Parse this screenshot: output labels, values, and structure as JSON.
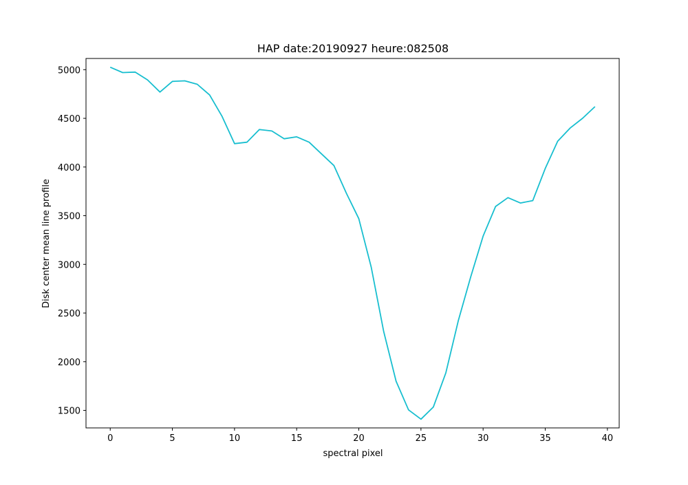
{
  "chart_data": {
    "type": "line",
    "title": "HAP date:20190927 heure:082508",
    "xlabel": "spectral pixel",
    "ylabel": "Disk center mean line profile",
    "xlim": [
      -1.95,
      40.95
    ],
    "ylim": [
      1320,
      5115
    ],
    "grid": false,
    "xticks": [
      0,
      5,
      10,
      15,
      20,
      25,
      30,
      35,
      40
    ],
    "yticks": [
      1500,
      2000,
      2500,
      3000,
      3500,
      4000,
      4500,
      5000
    ],
    "series": [
      {
        "color": "#17becf",
        "x": [
          0,
          1,
          2,
          3,
          4,
          5,
          6,
          7,
          8,
          9,
          10,
          11,
          12,
          13,
          14,
          15,
          16,
          17,
          18,
          19,
          20,
          21,
          22,
          23,
          24,
          25,
          26,
          27,
          28,
          29,
          30,
          31,
          32,
          33,
          34,
          35,
          36,
          37,
          38,
          39
        ],
        "y": [
          5025,
          4970,
          4975,
          4895,
          4770,
          4880,
          4885,
          4850,
          4740,
          4520,
          4240,
          4255,
          4385,
          4370,
          4290,
          4310,
          4255,
          4135,
          4015,
          3730,
          3470,
          2970,
          2310,
          1800,
          1505,
          1410,
          1535,
          1885,
          2420,
          2870,
          3290,
          3595,
          3685,
          3630,
          3655,
          3985,
          4265,
          4400,
          4500,
          4620
        ]
      }
    ]
  }
}
